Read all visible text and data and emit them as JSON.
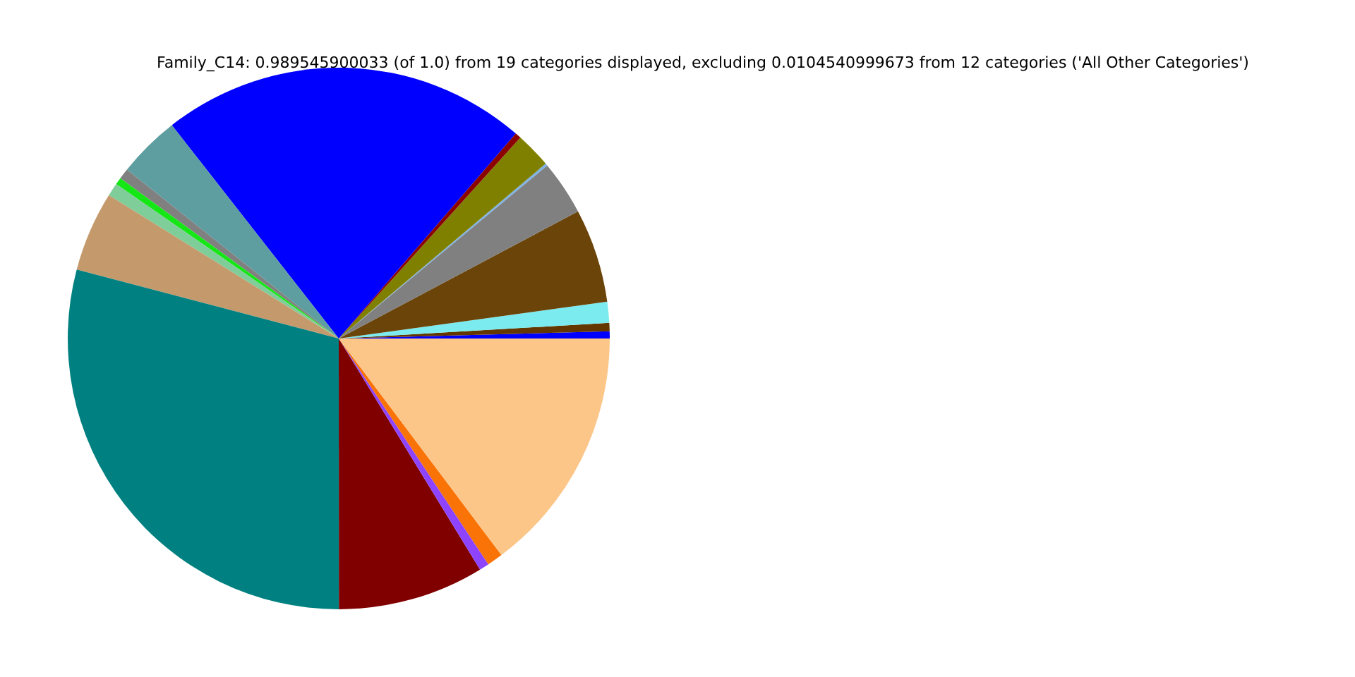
{
  "chart_data": {
    "type": "pie",
    "title": "Family_C14: 0.989545900033 (of 1.0) from 19 categories displayed, excluding 0.0104540999673 from 12 categories ('All Other Categories')",
    "categories": [
      null,
      null,
      null,
      null,
      null,
      null,
      null,
      null,
      null,
      null,
      null,
      null,
      null,
      null,
      null,
      null,
      null,
      null,
      null
    ],
    "values": [
      0.42,
      0.5,
      1.25,
      5.61,
      3.25,
      0.14,
      2.14,
      0.36,
      21.89,
      3.72,
      0.64,
      0.42,
      0.78,
      4.78,
      29.11,
      8.72,
      0.58,
      0.94,
      14.75
    ],
    "colors": [
      "#0000ff",
      "#653700",
      "#7bebef",
      "#6b4409",
      "#808080",
      "#7fb2e5",
      "#808000",
      "#8b0000",
      "#0000ff",
      "#5f9ea0",
      "#808080",
      "#15e615",
      "#7fcd99",
      "#c49a6c",
      "#008080",
      "#800000",
      "#8e44ff",
      "#f97306",
      "#fdc689"
    ]
  }
}
